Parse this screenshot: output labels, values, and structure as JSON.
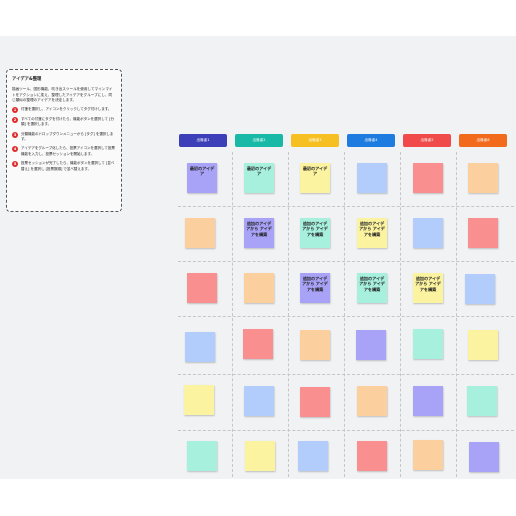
{
  "instructions": {
    "title": "アイデア&整理",
    "intro": "描画ツール、図形機能、吹き出スツールを使用してマインマイトをアクションに変え、整理したアイデアをグループにし、同じ類似の整理のアイデアを決定します。",
    "steps": [
      {
        "num": "1",
        "text": "付箋を選択し、アイコンをクリックしてタグ付けします。"
      },
      {
        "num": "2",
        "text": "すべての付箋にタグを付けたら、機能ボタンを選択して [分類] を選択します。"
      },
      {
        "num": "3",
        "text": "分類機能のドロップダウンメニューから [タグ] を選択します。"
      },
      {
        "num": "4",
        "text": "アイデアをグループ化したら、投票アイコンを選択して投票機能を入力し、投票セッションを開始します。"
      },
      {
        "num": "5",
        "text": "投票セッションが完了したら、機能ボタンを選択して [並べ替え] を選択し [投票数順] で並べ替えます。"
      }
    ]
  },
  "headers": [
    {
      "label": "出席者1",
      "color": "#3d3fb9"
    },
    {
      "label": "出席者2",
      "color": "#19b9a8"
    },
    {
      "label": "出席者3",
      "color": "#f6c022"
    },
    {
      "label": "出席者4",
      "color": "#1e7be0"
    },
    {
      "label": "出席者5",
      "color": "#f04a4a"
    },
    {
      "label": "出席者6",
      "color": "#f26b1d"
    }
  ],
  "notes": {
    "blank": "",
    "c1r1": "最初のアイデア",
    "c2r1": "最初のアイデア",
    "c3r1": "最初のアイデア",
    "c2r2": "追加のアイデアから アイデアを構築",
    "c3r2": "追加のアイデアから アイデアを構築",
    "c4r2": "追加のアイデアから アイデアを構築",
    "c3r3": "追加のアイデアから アイデアを構築",
    "c4r3": "追加のアイデアから アイデアを構築",
    "c5r3": "追加のアイデアから アイデアを構築"
  },
  "colors": {
    "purple": "#a9a3f7",
    "mint": "#a8f0de",
    "yellow": "#fbf3a0",
    "blue": "#b2cdfb",
    "red": "#f98f8f",
    "orange": "#fccf9e"
  }
}
